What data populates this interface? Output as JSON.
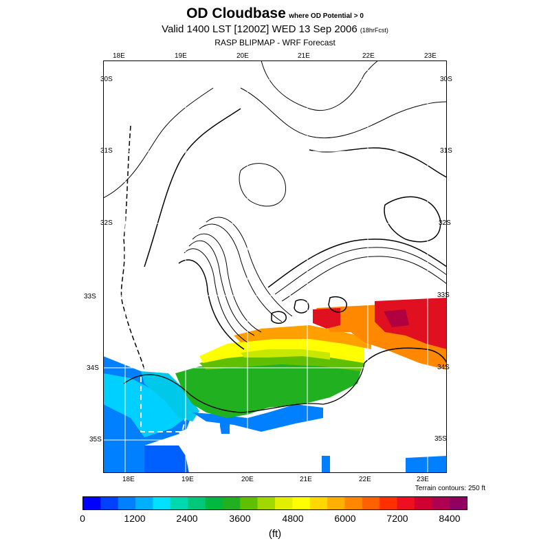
{
  "header": {
    "title": "OD Cloudbase",
    "title_note": "where OD Potential > 0",
    "valid": "Valid 1400 LST [1200Z] WED 13 Sep 2006",
    "valid_note": "(18hrFcst)",
    "subtitle": "RASP BLIPMAP - WRF Forecast"
  },
  "map": {
    "lon_labels_top": [
      "18E",
      "19E",
      "20E",
      "21E",
      "22E",
      "23E"
    ],
    "lon_labels_bottom": [
      "18E",
      "19E",
      "20E",
      "21E",
      "22E",
      "23E"
    ],
    "lat_labels_left": [
      "30S",
      "31S",
      "32S",
      "33S",
      "34S",
      "35S"
    ],
    "lat_labels_right": [
      "30S",
      "31S",
      "32S",
      "33S",
      "34S",
      "35S"
    ],
    "terrain_note": "Terrain contours: 250 ft"
  },
  "colorbar": {
    "colors": [
      "#0000ff",
      "#0040ff",
      "#0080ff",
      "#00b0ff",
      "#00e0ff",
      "#00d8b0",
      "#00c878",
      "#00b840",
      "#20b020",
      "#60c000",
      "#a0d800",
      "#e0f000",
      "#ffff00",
      "#ffd800",
      "#ffb000",
      "#ff8800",
      "#ff6000",
      "#ff3000",
      "#ee1020",
      "#d00030",
      "#b00050",
      "#900060"
    ],
    "ticks": [
      "0",
      "1200",
      "2400",
      "3600",
      "4800",
      "6000",
      "7200",
      "8400"
    ],
    "units": "(ft)"
  },
  "colors": {
    "land_blue": "#0080ff",
    "cyan": "#00d8ff",
    "green": "#20b020",
    "yellow": "#ffff00",
    "orange": "#ffa000",
    "red": "#e01020"
  }
}
